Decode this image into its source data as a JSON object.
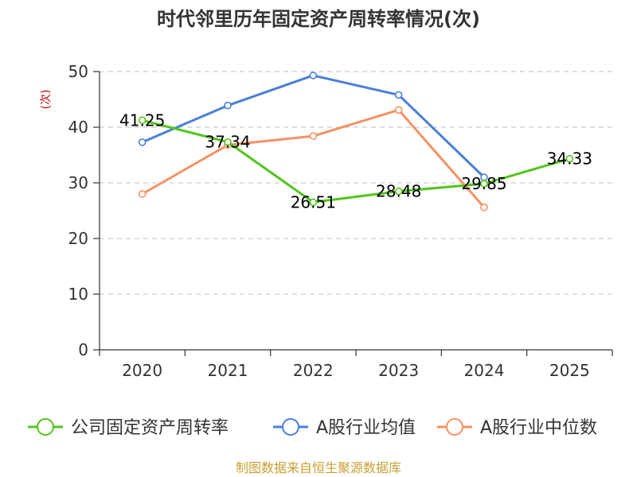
{
  "chart_data": {
    "type": "line",
    "title": "时代邻里历年固定资产周转率情况(次)",
    "ylabel": "(次)",
    "xlabel": "",
    "categories": [
      "2020",
      "2021",
      "2022",
      "2023",
      "2024",
      "2025"
    ],
    "ylim": [
      0,
      50
    ],
    "yticks": [
      0,
      10,
      20,
      30,
      40,
      50
    ],
    "grid": true,
    "legend_position": "bottom",
    "series": [
      {
        "name": "公司固定资产周转率",
        "color": "#52c41a",
        "values": [
          41.25,
          37.34,
          26.51,
          28.48,
          29.85,
          34.33
        ],
        "labels": [
          "41.25",
          "37.34",
          "26.51",
          "28.48",
          "29.85",
          "34.33"
        ]
      },
      {
        "name": "A股行业均值",
        "color": "#4a7fd9",
        "values": [
          37.3,
          43.9,
          49.3,
          45.8,
          31.0,
          null
        ]
      },
      {
        "name": "A股行业中位数",
        "color": "#f59162",
        "values": [
          28.0,
          36.8,
          38.4,
          43.1,
          25.6,
          null
        ]
      }
    ]
  },
  "colors": {
    "title": "#333333",
    "axis": "#333333",
    "grid": "#cccccc",
    "unit": "#cc0000",
    "source": "#c8a032"
  },
  "source": "制图数据来自恒生聚源数据库"
}
